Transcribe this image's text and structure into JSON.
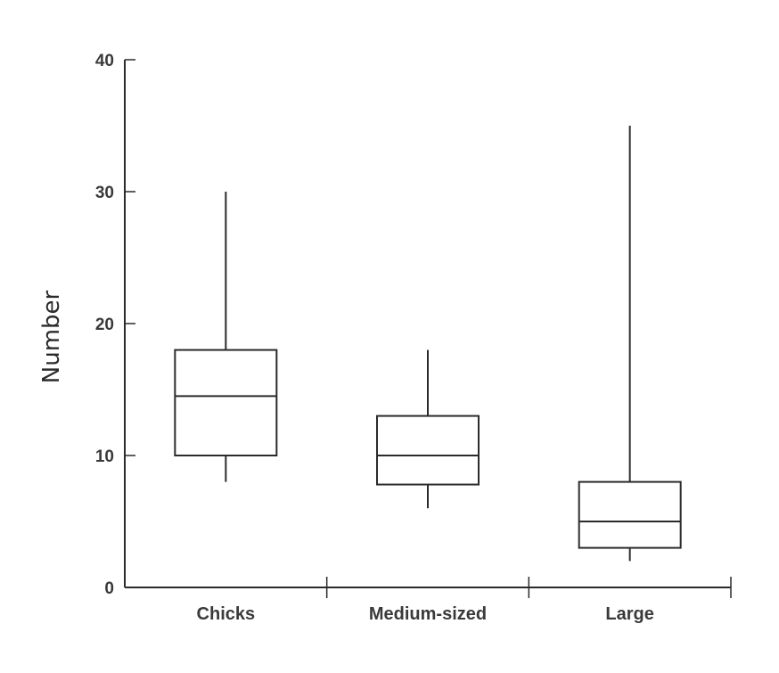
{
  "chart_data": {
    "type": "box",
    "title": "",
    "xlabel": "",
    "ylabel": "Number",
    "ylim": [
      0,
      40
    ],
    "yticks": [
      0,
      10,
      20,
      30,
      40
    ],
    "grid": false,
    "categories": [
      "Chicks",
      "Medium-sized",
      "Large"
    ],
    "boxes": [
      {
        "category": "Chicks",
        "whisker_low": 8,
        "q1": 10,
        "median": 14.5,
        "q3": 18,
        "whisker_high": 30
      },
      {
        "category": "Medium-sized",
        "whisker_low": 6,
        "q1": 7.8,
        "median": 10,
        "q3": 13,
        "whisker_high": 18
      },
      {
        "category": "Large",
        "whisker_low": 2,
        "q1": 3,
        "median": 5,
        "q3": 8,
        "whisker_high": 35
      }
    ]
  }
}
